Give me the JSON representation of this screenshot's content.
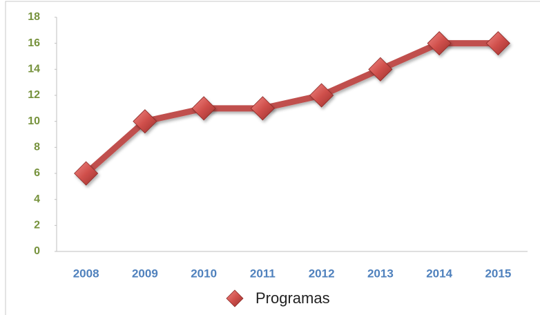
{
  "chart_data": {
    "type": "line",
    "categories": [
      "2008",
      "2009",
      "2010",
      "2011",
      "2012",
      "2013",
      "2014",
      "2015"
    ],
    "series": [
      {
        "name": "Programas",
        "color": "#c0504d",
        "values": [
          6,
          10,
          11,
          11,
          12,
          14,
          16,
          16
        ]
      }
    ],
    "ylim": [
      0,
      18
    ],
    "yticks": [
      0,
      2,
      4,
      6,
      8,
      10,
      12,
      14,
      16,
      18
    ],
    "legend": "bottom"
  }
}
